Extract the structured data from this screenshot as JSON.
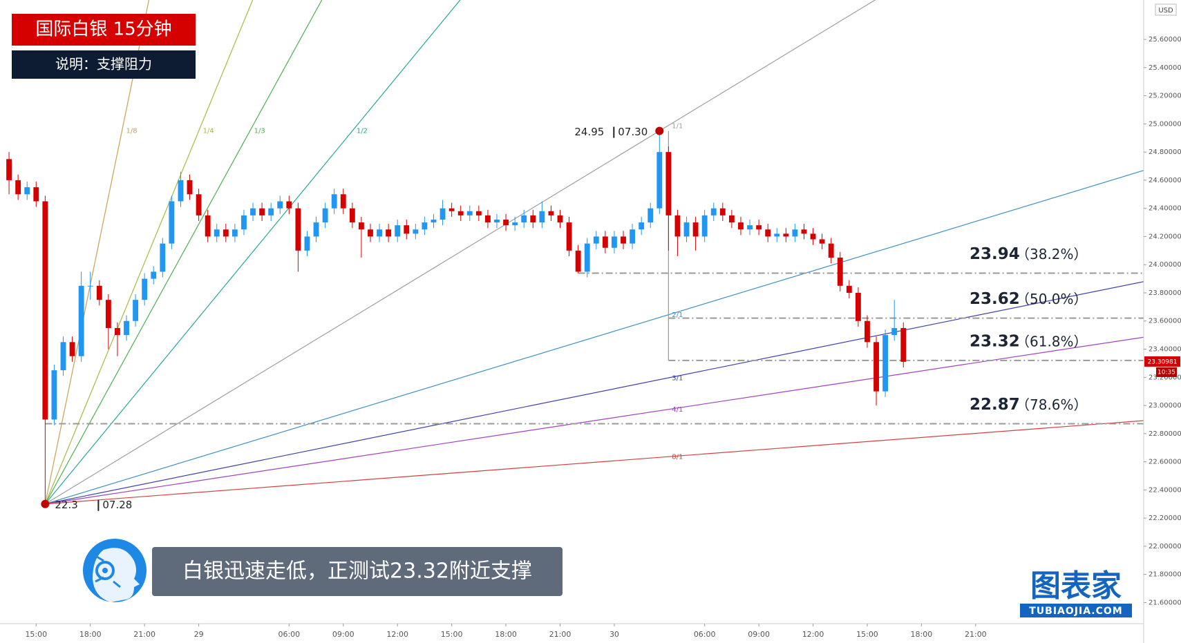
{
  "chart_data": {
    "type": "candlestick",
    "title": "国际白银  15分钟",
    "subtitle": "说明：支撑阻力",
    "caption": "白银迅速走低，正测试23.32附近支撑",
    "logo": "图表家",
    "logo_url": "TUBIAOJIA.COM",
    "currency": "USD",
    "up_color": "#2196f3",
    "down_color": "#d50000",
    "xlim": [
      -1,
      125.6
    ],
    "xticks": [
      {
        "value": 3,
        "label": "15:00"
      },
      {
        "value": 9,
        "label": "18:00"
      },
      {
        "value": 15,
        "label": "21:00"
      },
      {
        "value": 21,
        "label": "29"
      },
      {
        "value": 31,
        "label": "06:00"
      },
      {
        "value": 37,
        "label": "09:00"
      },
      {
        "value": 43,
        "label": "12:00"
      },
      {
        "value": 49,
        "label": "15:00"
      },
      {
        "value": 55,
        "label": "18:00"
      },
      {
        "value": 61,
        "label": "21:00"
      },
      {
        "value": 67,
        "label": "30"
      },
      {
        "value": 77,
        "label": "06:00"
      },
      {
        "value": 83,
        "label": "09:00"
      },
      {
        "value": 89,
        "label": "12:00"
      },
      {
        "value": 95,
        "label": "15:00"
      },
      {
        "value": 101,
        "label": "18:00"
      },
      {
        "value": 107,
        "label": "21:00"
      }
    ],
    "ylim": [
      21.45,
      25.88
    ],
    "yticks": [
      {
        "value": 21.6,
        "label": "21.60000"
      },
      {
        "value": 21.8,
        "label": "21.80000"
      },
      {
        "value": 22.0,
        "label": "22.00000"
      },
      {
        "value": 22.2,
        "label": "22.20000"
      },
      {
        "value": 22.4,
        "label": "22.40000"
      },
      {
        "value": 22.6,
        "label": "22.60000"
      },
      {
        "value": 22.8,
        "label": "22.80000"
      },
      {
        "value": 23.0,
        "label": "23.00000"
      },
      {
        "value": 23.2,
        "label": "23.20000"
      },
      {
        "value": 23.4,
        "label": "23.40000"
      },
      {
        "value": 23.6,
        "label": "23.60000"
      },
      {
        "value": 23.8,
        "label": "23.80000"
      },
      {
        "value": 24.0,
        "label": "24.00000"
      },
      {
        "value": 24.2,
        "label": "24.20000"
      },
      {
        "value": 24.4,
        "label": "24.40000"
      },
      {
        "value": 24.6,
        "label": "24.60000"
      },
      {
        "value": 24.8,
        "label": "24.80000"
      },
      {
        "value": 25.0,
        "label": "25.00000"
      },
      {
        "value": 25.2,
        "label": "25.20000"
      },
      {
        "value": 25.4,
        "label": "25.40000"
      },
      {
        "value": 25.6,
        "label": "25.60000"
      }
    ],
    "candles": [
      [
        24.75,
        24.8,
        24.5,
        24.6
      ],
      [
        24.6,
        24.64,
        24.46,
        24.5
      ],
      [
        24.5,
        24.59,
        24.46,
        24.55
      ],
      [
        24.55,
        24.59,
        24.41,
        24.45
      ],
      [
        24.45,
        24.49,
        22.3,
        22.9
      ],
      [
        22.9,
        23.29,
        22.86,
        23.25
      ],
      [
        23.25,
        23.49,
        23.21,
        23.45
      ],
      [
        23.45,
        23.49,
        23.31,
        23.35
      ],
      [
        23.35,
        23.95,
        23.31,
        23.85
      ],
      [
        23.85,
        23.95,
        23.75,
        23.85
      ],
      [
        23.85,
        23.89,
        23.71,
        23.75
      ],
      [
        23.75,
        23.79,
        23.4,
        23.55
      ],
      [
        23.55,
        23.59,
        23.35,
        23.5
      ],
      [
        23.5,
        23.64,
        23.46,
        23.6
      ],
      [
        23.6,
        23.79,
        23.56,
        23.75
      ],
      [
        23.75,
        23.94,
        23.71,
        23.9
      ],
      [
        23.9,
        23.99,
        23.86,
        23.95
      ],
      [
        23.95,
        24.19,
        23.91,
        24.15
      ],
      [
        24.15,
        24.49,
        24.11,
        24.45
      ],
      [
        24.45,
        24.66,
        24.41,
        24.6
      ],
      [
        24.6,
        24.64,
        24.46,
        24.5
      ],
      [
        24.5,
        24.54,
        24.31,
        24.35
      ],
      [
        24.35,
        24.39,
        24.16,
        24.2
      ],
      [
        24.2,
        24.29,
        24.16,
        24.25
      ],
      [
        24.25,
        24.29,
        24.16,
        24.2
      ],
      [
        24.2,
        24.29,
        24.16,
        24.25
      ],
      [
        24.25,
        24.39,
        24.21,
        24.35
      ],
      [
        24.35,
        24.44,
        24.31,
        24.4
      ],
      [
        24.4,
        24.44,
        24.31,
        24.35
      ],
      [
        24.35,
        24.44,
        24.31,
        24.4
      ],
      [
        24.4,
        24.49,
        24.36,
        24.45
      ],
      [
        24.45,
        24.49,
        24.36,
        24.4
      ],
      [
        24.4,
        24.44,
        23.95,
        24.1
      ],
      [
        24.1,
        24.24,
        24.06,
        24.2
      ],
      [
        24.2,
        24.34,
        24.16,
        24.3
      ],
      [
        24.3,
        24.44,
        24.26,
        24.4
      ],
      [
        24.4,
        24.54,
        24.36,
        24.5
      ],
      [
        24.5,
        24.54,
        24.36,
        24.4
      ],
      [
        24.4,
        24.44,
        24.26,
        24.3
      ],
      [
        24.3,
        24.34,
        24.05,
        24.25
      ],
      [
        24.25,
        24.29,
        24.16,
        24.2
      ],
      [
        24.2,
        24.29,
        24.16,
        24.25
      ],
      [
        24.25,
        24.29,
        24.16,
        24.2
      ],
      [
        24.2,
        24.32,
        24.16,
        24.28
      ],
      [
        24.28,
        24.32,
        24.18,
        24.22
      ],
      [
        24.22,
        24.29,
        24.18,
        24.25
      ],
      [
        24.25,
        24.34,
        24.21,
        24.3
      ],
      [
        24.3,
        24.36,
        24.26,
        24.32
      ],
      [
        24.32,
        24.46,
        24.28,
        24.4
      ],
      [
        24.4,
        24.44,
        24.34,
        24.38
      ],
      [
        24.38,
        24.42,
        24.31,
        24.35
      ],
      [
        24.35,
        24.42,
        24.31,
        24.38
      ],
      [
        24.38,
        24.42,
        24.31,
        24.35
      ],
      [
        24.35,
        24.39,
        24.26,
        24.3
      ],
      [
        24.3,
        24.36,
        24.26,
        24.32
      ],
      [
        24.32,
        24.36,
        24.24,
        24.28
      ],
      [
        24.28,
        24.34,
        24.24,
        24.3
      ],
      [
        24.3,
        24.39,
        24.26,
        24.35
      ],
      [
        24.35,
        24.39,
        24.26,
        24.3
      ],
      [
        24.3,
        24.45,
        24.26,
        24.38
      ],
      [
        24.38,
        24.42,
        24.31,
        24.35
      ],
      [
        24.35,
        24.39,
        24.26,
        24.3
      ],
      [
        24.3,
        24.34,
        24.06,
        24.1
      ],
      [
        24.1,
        24.14,
        23.94,
        23.95
      ],
      [
        23.95,
        24.19,
        23.91,
        24.15
      ],
      [
        24.15,
        24.24,
        24.11,
        24.2
      ],
      [
        24.2,
        24.24,
        24.08,
        24.12
      ],
      [
        24.12,
        24.24,
        24.08,
        24.2
      ],
      [
        24.2,
        24.24,
        24.11,
        24.15
      ],
      [
        24.15,
        24.29,
        24.11,
        24.25
      ],
      [
        24.25,
        24.34,
        24.21,
        24.3
      ],
      [
        24.3,
        24.44,
        24.26,
        24.4
      ],
      [
        24.4,
        24.95,
        24.36,
        24.8
      ],
      [
        24.8,
        24.84,
        24.1,
        24.35
      ],
      [
        24.35,
        24.39,
        24.06,
        24.2
      ],
      [
        24.2,
        24.34,
        24.16,
        24.3
      ],
      [
        24.3,
        24.34,
        24.1,
        24.2
      ],
      [
        24.2,
        24.39,
        24.16,
        24.35
      ],
      [
        24.35,
        24.44,
        24.31,
        24.4
      ],
      [
        24.4,
        24.44,
        24.31,
        24.35
      ],
      [
        24.35,
        24.39,
        24.26,
        24.3
      ],
      [
        24.3,
        24.34,
        24.21,
        24.25
      ],
      [
        24.25,
        24.32,
        24.21,
        24.28
      ],
      [
        24.28,
        24.32,
        24.21,
        24.25
      ],
      [
        24.25,
        24.29,
        24.16,
        24.2
      ],
      [
        24.2,
        24.26,
        24.16,
        24.22
      ],
      [
        24.22,
        24.26,
        24.16,
        24.2
      ],
      [
        24.2,
        24.29,
        24.16,
        24.25
      ],
      [
        24.25,
        24.29,
        24.18,
        24.22
      ],
      [
        24.22,
        24.26,
        24.14,
        24.18
      ],
      [
        24.18,
        24.22,
        24.11,
        24.15
      ],
      [
        24.15,
        24.19,
        24.01,
        24.05
      ],
      [
        24.05,
        24.09,
        23.81,
        23.85
      ],
      [
        23.85,
        23.89,
        23.76,
        23.8
      ],
      [
        23.8,
        23.84,
        23.56,
        23.6
      ],
      [
        23.6,
        23.64,
        23.41,
        23.45
      ],
      [
        23.45,
        23.49,
        23.0,
        23.1
      ],
      [
        23.1,
        23.54,
        23.06,
        23.5
      ],
      [
        23.5,
        23.75,
        23.46,
        23.55
      ],
      [
        23.55,
        23.59,
        23.27,
        23.31
      ]
    ],
    "high_point": {
      "value": 24.95,
      "time": "07.30"
    },
    "low_point": {
      "value": 22.3,
      "time": "07.28"
    },
    "gann_fan": [
      {
        "label": "1/8",
        "color": "#c8a050"
      },
      {
        "label": "1/4",
        "color": "#a8b840"
      },
      {
        "label": "1/3",
        "color": "#4caf50"
      },
      {
        "label": "1/2",
        "color": "#26a69a"
      },
      {
        "label": "1/1",
        "color": "#9e9e9e"
      },
      {
        "label": "2/1",
        "color": "#3d8fc4"
      },
      {
        "label": "3/1",
        "color": "#3f3fb0"
      },
      {
        "label": "4/1",
        "color": "#a040c0"
      },
      {
        "label": "8/1",
        "color": "#d04040"
      }
    ],
    "fib_levels": [
      {
        "value": 23.94,
        "label": "（38.2%）"
      },
      {
        "value": 23.62,
        "label": "（50.0%）"
      },
      {
        "value": 23.32,
        "label": "（61.8%）"
      },
      {
        "value": 22.87,
        "label": "（78.6%）"
      }
    ],
    "last_price": {
      "value": 23.30981,
      "time": "10:35"
    }
  }
}
